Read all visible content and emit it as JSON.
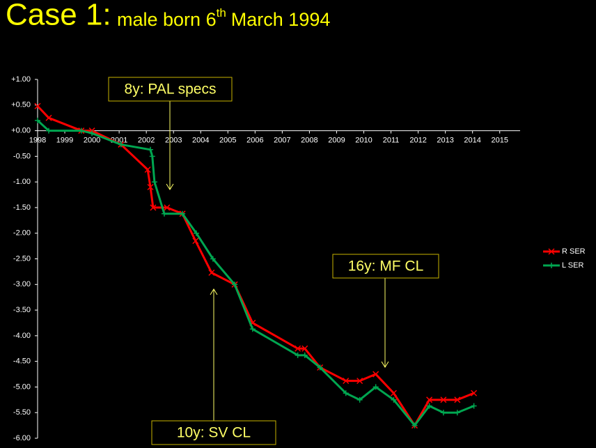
{
  "chart_data": {
    "type": "line",
    "title": "Case 1:",
    "subtitle": [
      "male born 6",
      "th",
      "March 1994"
    ],
    "annotations": [
      "8y: PAL specs",
      "10y: SV CL",
      "16y: MF CL"
    ],
    "xlim": [
      1998,
      2015.75
    ],
    "xticks": [
      1998,
      1999,
      2000,
      2001,
      2002,
      2003,
      2004,
      2005,
      2006,
      2007,
      2008,
      2009,
      2010,
      2011,
      2012,
      2013,
      2014,
      2015
    ],
    "ylim": [
      -6,
      1
    ],
    "yticks": [
      {
        "value": 1,
        "label": "+1.00"
      },
      {
        "value": 0.5,
        "label": "+0.50"
      },
      {
        "value": 0,
        "label": "+0.00"
      },
      {
        "value": -0.5,
        "label": "-0.50"
      },
      {
        "value": -1,
        "label": "-1.00"
      },
      {
        "value": -1.5,
        "label": "-1.50"
      },
      {
        "value": -2,
        "label": "-2.00"
      },
      {
        "value": -2.5,
        "label": "-2.50"
      },
      {
        "value": -3,
        "label": "-3.00"
      },
      {
        "value": -3.5,
        "label": "-3.50"
      },
      {
        "value": -4,
        "label": "-4.00"
      },
      {
        "value": -4.5,
        "label": "-4.50"
      },
      {
        "value": -5,
        "label": "-5.00"
      },
      {
        "value": -5.5,
        "label": "-5.50"
      },
      {
        "value": -6,
        "label": "-6.00"
      }
    ],
    "series": [
      {
        "name": "R SER",
        "color": "#ff0000",
        "marker": "x",
        "x": [
          1998.0,
          1998.41,
          1999.61,
          2000.0,
          2001.07,
          2002.05,
          2002.15,
          2002.25,
          2002.76,
          2003.33,
          2003.81,
          2004.4,
          2005.25,
          2005.91,
          2007.57,
          2007.83,
          2008.39,
          2009.34,
          2009.85,
          2010.44,
          2011.1,
          2011.87,
          2012.41,
          2012.93,
          2013.44,
          2014.05
        ],
        "values": [
          0.48,
          0.25,
          0,
          0,
          -0.27,
          -0.76,
          -1.1,
          -1.5,
          -1.5,
          -1.62,
          -2.15,
          -2.77,
          -3.0,
          -3.75,
          -4.25,
          -4.25,
          -4.62,
          -4.88,
          -4.88,
          -4.75,
          -5.12,
          -5.75,
          -5.25,
          -5.25,
          -5.25,
          -5.12
        ]
      },
      {
        "name": "L SER",
        "color": "#00a650",
        "marker": "+",
        "x": [
          1998.0,
          1998.41,
          1999.61,
          2000.0,
          2001.07,
          2002.15,
          2002.22,
          2002.3,
          2002.66,
          2003.33,
          2003.84,
          2004.45,
          2005.25,
          2005.91,
          2007.57,
          2007.83,
          2008.39,
          2009.34,
          2009.85,
          2010.44,
          2011.1,
          2011.87,
          2012.41,
          2012.93,
          2013.44,
          2014.05
        ],
        "values": [
          0.2,
          0,
          0,
          -0.05,
          -0.27,
          -0.37,
          -0.5,
          -1.0,
          -1.62,
          -1.62,
          -2.0,
          -2.5,
          -3.0,
          -3.87,
          -4.38,
          -4.38,
          -4.62,
          -5.12,
          -5.25,
          -5.0,
          -5.25,
          -5.75,
          -5.37,
          -5.5,
          -5.5,
          -5.37
        ]
      }
    ]
  }
}
